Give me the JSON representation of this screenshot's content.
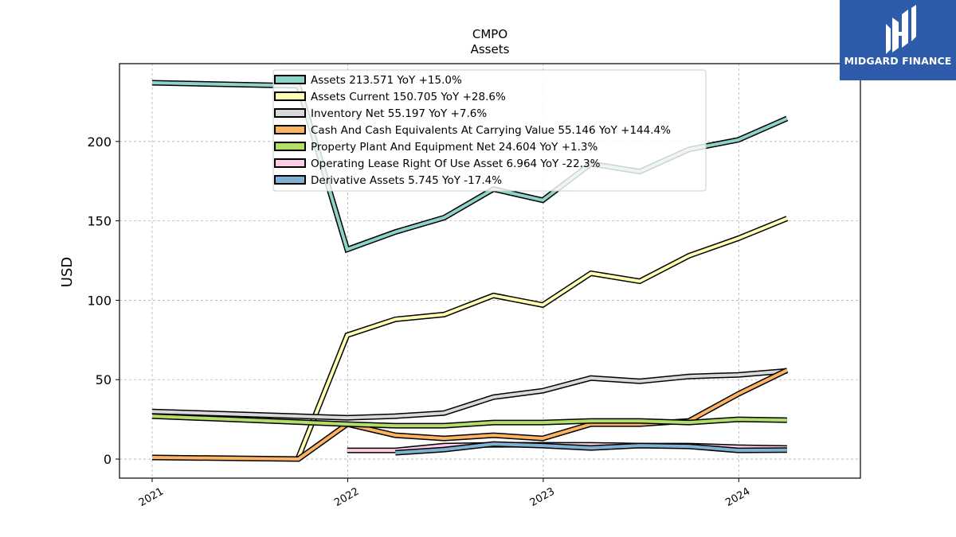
{
  "brand": {
    "name": "MIDGARD FINANCE",
    "bg_color": "#2f5bab"
  },
  "chart_data": {
    "type": "line",
    "title": "CMPO",
    "subtitle": "Assets",
    "ylabel": "USD",
    "xlabel": "",
    "xlim": [
      "2020-11-01",
      "2024-08-15"
    ],
    "ylim": [
      -12,
      249
    ],
    "yticks": [
      0,
      50,
      100,
      150,
      200
    ],
    "xticks": [
      "2021",
      "2022",
      "2023",
      "2024"
    ],
    "xtick_dates": [
      "2021-01-01",
      "2022-01-01",
      "2023-01-01",
      "2024-01-01"
    ],
    "grid": true,
    "legend_position": "top-center",
    "series": [
      {
        "name": "Assets",
        "legend_label": "Assets  213.571 YoY +15.0%",
        "color": "#8dd3c7",
        "x": [
          "2021-01-01",
          "2021-10-01",
          "2021-12-31",
          "2022-03-31",
          "2022-06-30",
          "2022-09-30",
          "2022-12-31",
          "2023-03-31",
          "2023-06-30",
          "2023-09-30",
          "2023-12-31",
          "2024-03-31"
        ],
        "y": [
          237,
          235,
          132,
          143,
          152,
          170,
          163,
          186,
          181,
          195,
          201,
          214.5
        ]
      },
      {
        "name": "Assets Current",
        "legend_label": "Assets Current  150.705 YoY +28.6%",
        "color": "#ffffb3",
        "x": [
          "2021-10-01",
          "2021-12-31",
          "2022-03-31",
          "2022-06-30",
          "2022-09-30",
          "2022-12-31",
          "2023-03-31",
          "2023-06-30",
          "2023-09-30",
          "2023-12-31",
          "2024-03-31"
        ],
        "y": [
          1,
          78,
          88,
          91,
          103,
          97,
          117,
          112,
          128,
          139,
          151.5
        ]
      },
      {
        "name": "Inventory Net",
        "legend_label": "Inventory Net  55.197 YoY +7.6%",
        "color": "#d9d9d9",
        "x": [
          "2021-01-01",
          "2021-12-31",
          "2022-03-31",
          "2022-06-30",
          "2022-09-30",
          "2022-12-31",
          "2023-03-31",
          "2023-06-30",
          "2023-09-30",
          "2023-12-31",
          "2024-03-31"
        ],
        "y": [
          30,
          26,
          27,
          29,
          39,
          43,
          51,
          49,
          52,
          53,
          55.5
        ]
      },
      {
        "name": "Cash And Cash Equivalents At Carrying Value",
        "legend_label": "Cash And Cash Equivalents At Carrying Value  55.146 YoY +144.4%",
        "color": "#fdb462",
        "x": [
          "2021-01-01",
          "2021-10-01",
          "2021-12-31",
          "2022-03-31",
          "2022-06-30",
          "2022-09-30",
          "2022-12-31",
          "2023-03-31",
          "2023-06-30",
          "2023-09-30",
          "2023-12-31",
          "2024-03-31"
        ],
        "y": [
          1,
          0,
          22,
          15,
          13,
          15,
          13,
          22,
          22,
          24,
          41,
          56
        ]
      },
      {
        "name": "Property Plant And Equipment Net",
        "legend_label": "Property Plant And Equipment Net  24.604 YoY +1.3%",
        "color": "#b3de69",
        "x": [
          "2021-01-01",
          "2021-12-31",
          "2022-03-31",
          "2022-06-30",
          "2022-09-30",
          "2022-12-31",
          "2023-03-31",
          "2023-06-30",
          "2023-09-30",
          "2023-12-31",
          "2024-03-31"
        ],
        "y": [
          27,
          22,
          21,
          21,
          23,
          23,
          24,
          24,
          23,
          25,
          24.5
        ]
      },
      {
        "name": "Operating Lease Right Of Use Asset",
        "legend_label": "Operating Lease Right Of Use Asset  6.964 YoY -22.3%",
        "color": "#fccde5",
        "x": [
          "2021-12-31",
          "2022-03-31",
          "2022-06-30",
          "2022-09-30",
          "2022-12-31",
          "2023-03-31",
          "2023-06-30",
          "2023-09-30",
          "2023-12-31",
          "2024-03-31"
        ],
        "y": [
          5.5,
          5.5,
          8.5,
          9,
          9,
          9,
          8.5,
          8.5,
          7.5,
          7
        ]
      },
      {
        "name": "Derivative Assets",
        "legend_label": "Derivative Assets  5.745 YoY -17.4%",
        "color": "#80b1d3",
        "x": [
          "2022-03-31",
          "2022-06-30",
          "2022-09-30",
          "2022-12-31",
          "2023-03-31",
          "2023-06-30",
          "2023-09-30",
          "2023-12-31",
          "2024-03-31"
        ],
        "y": [
          4,
          6,
          9.5,
          8.5,
          7,
          8.5,
          8,
          5.5,
          5.7
        ]
      }
    ]
  }
}
